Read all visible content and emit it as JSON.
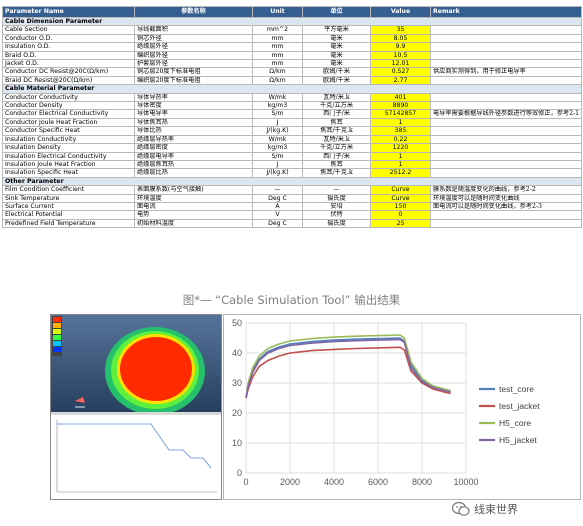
{
  "table": {
    "headers": [
      "Parameter Name",
      "参数名称",
      "Unit",
      "单位",
      "Value",
      "Remark"
    ],
    "sections": [
      {
        "title": "Cable Dimension Parameter",
        "rows": [
          [
            "Cable Section",
            "导线截面积",
            "mm^2",
            "平方毫米",
            "35",
            ""
          ],
          [
            "Conductor O.D.",
            "铜芯外径",
            "mm",
            "毫米",
            "8.05",
            ""
          ],
          [
            "Insulation O.D.",
            "绝缘层外径",
            "mm",
            "毫米",
            "9.9",
            ""
          ],
          [
            "Braid O.D.",
            "编织层外径",
            "mm",
            "毫米",
            "10.5",
            ""
          ],
          [
            "Jacket O.D.",
            "护套层外径",
            "mm",
            "毫米",
            "12.01",
            ""
          ],
          [
            "Conductor DC Resist@20C(Ω/km)",
            "铜芯层20度下标准电阻",
            "Ω/km",
            "欧姆/千米",
            "0.527",
            "供应商实测得到，用于修正电导率"
          ],
          [
            "Braid DC Resist@20C(Ω/km)",
            "编织层20度下标准电阻",
            "Ω/km",
            "欧姆/千米",
            "2.77",
            ""
          ]
        ]
      },
      {
        "title": "Cable Material Parameter",
        "rows": [
          [
            "Conductor Conductivity",
            "导体导热率",
            "W/mk",
            "瓦特/米.k",
            "401",
            ""
          ],
          [
            "Conductor Density",
            "导体密度",
            "kg/m3",
            "千克/立方米",
            "8890",
            ""
          ],
          [
            "Conductor Electrical Conductivity",
            "导体电导率",
            "S/m",
            "西门子/米",
            "57142857",
            "电导率需要根据导线外径参数进行等效修正，参考2-1"
          ],
          [
            "Conductor Joule Heat Fraction",
            "导体焦耳热",
            "J",
            "焦耳",
            "1",
            ""
          ],
          [
            "Conductor Specific Heat",
            "导体比热",
            "J/(kg.K)",
            "焦耳/千克.k",
            "385",
            ""
          ],
          [
            "Insulation Conductivity",
            "绝缘层导热率",
            "W/mk",
            "瓦特/米.k",
            "0.22",
            ""
          ],
          [
            "Insulation Density",
            "绝缘层密度",
            "kg/m3",
            "千克/立方米",
            "1220",
            ""
          ],
          [
            "Insulation Electrical Conductivity",
            "绝缘层电导率",
            "S/m",
            "西门子/米",
            "1",
            ""
          ],
          [
            "Insulation Joule Heat Fraction",
            "绝缘层焦耳热",
            "J",
            "焦耳",
            "1",
            ""
          ],
          [
            "Insulation Specific Heat",
            "绝缘层比热",
            "J/(kg.K)",
            "焦耳/千克.k",
            "2512.2",
            ""
          ]
        ]
      },
      {
        "title": "Other Parameter",
        "rows": [
          [
            "Film Condition Coefficient",
            "表面膜系数(与空气接触)",
            "—",
            "—",
            "Curve",
            "膜系数是随温度变化的曲线，参考2-2"
          ],
          [
            "Sink Temperature",
            "环境温度",
            "Deg C",
            "摄氏度",
            "Curve",
            "环境温度可以是随时间变化曲线"
          ],
          [
            "Surface Current",
            "面电流",
            "A",
            "安培",
            "150",
            "面电流可以是随时间变化曲线，参考2-3"
          ],
          [
            "Electrical Potential",
            "电势",
            "V",
            "伏特",
            "0",
            ""
          ],
          [
            "Predefined Field Temperature",
            "初始材料温度",
            "Deg C",
            "摄氏度",
            "25",
            ""
          ]
        ]
      }
    ]
  },
  "caption": "图*— “Cable Simulation Tool” 输出结果",
  "chart_data": {
    "type": "line",
    "xlim": [
      0,
      10000
    ],
    "ylim": [
      0,
      50
    ],
    "xticks": [
      "0",
      "2000",
      "4000",
      "6000",
      "8000",
      "10000"
    ],
    "yticks": [
      "0",
      "10",
      "20",
      "30",
      "40",
      "50"
    ],
    "legend_position": "right",
    "series": [
      {
        "name": "test_core",
        "color": "#4f81bd",
        "x": [
          0,
          100,
          300,
          600,
          1000,
          1500,
          2000,
          3000,
          4000,
          5000,
          6000,
          7000,
          7200,
          7500,
          8000,
          8500,
          9000,
          9300
        ],
        "y": [
          25,
          29,
          34,
          38,
          40.5,
          42,
          43,
          43.8,
          44.3,
          44.6,
          44.8,
          45,
          44,
          36,
          31,
          29,
          28,
          27.5
        ]
      },
      {
        "name": "test_jacket",
        "color": "#c0504d",
        "x": [
          0,
          100,
          300,
          600,
          1000,
          1500,
          2000,
          3000,
          4000,
          5000,
          6000,
          7000,
          7200,
          7500,
          8000,
          8500,
          9000,
          9300
        ],
        "y": [
          25,
          28,
          32,
          35.5,
          37.5,
          39,
          40,
          40.8,
          41.2,
          41.5,
          41.7,
          41.9,
          41,
          34,
          30,
          28,
          27,
          26.5
        ]
      },
      {
        "name": "H5_core",
        "color": "#9bbb59",
        "x": [
          0,
          100,
          300,
          600,
          1000,
          1500,
          2000,
          3000,
          4000,
          5000,
          6000,
          7000,
          7200,
          7500,
          8000,
          8500,
          9000,
          9300
        ],
        "y": [
          25,
          30,
          35,
          39,
          41.5,
          43,
          44,
          44.8,
          45.3,
          45.6,
          45.8,
          46,
          45,
          37,
          31.5,
          29,
          28,
          27.5
        ]
      },
      {
        "name": "H5_jacket",
        "color": "#8064a2",
        "x": [
          0,
          100,
          300,
          600,
          1000,
          1500,
          2000,
          3000,
          4000,
          5000,
          6000,
          7000,
          7200,
          7500,
          8000,
          8500,
          9000,
          9300
        ],
        "y": [
          25,
          29,
          33.5,
          37.5,
          40,
          41.5,
          42.5,
          43.3,
          43.8,
          44.1,
          44.3,
          44.5,
          43.5,
          35,
          30.5,
          28.5,
          27.5,
          27
        ]
      }
    ]
  },
  "watermark": {
    "text": "线束世界",
    "icon": "wechat-icon"
  }
}
